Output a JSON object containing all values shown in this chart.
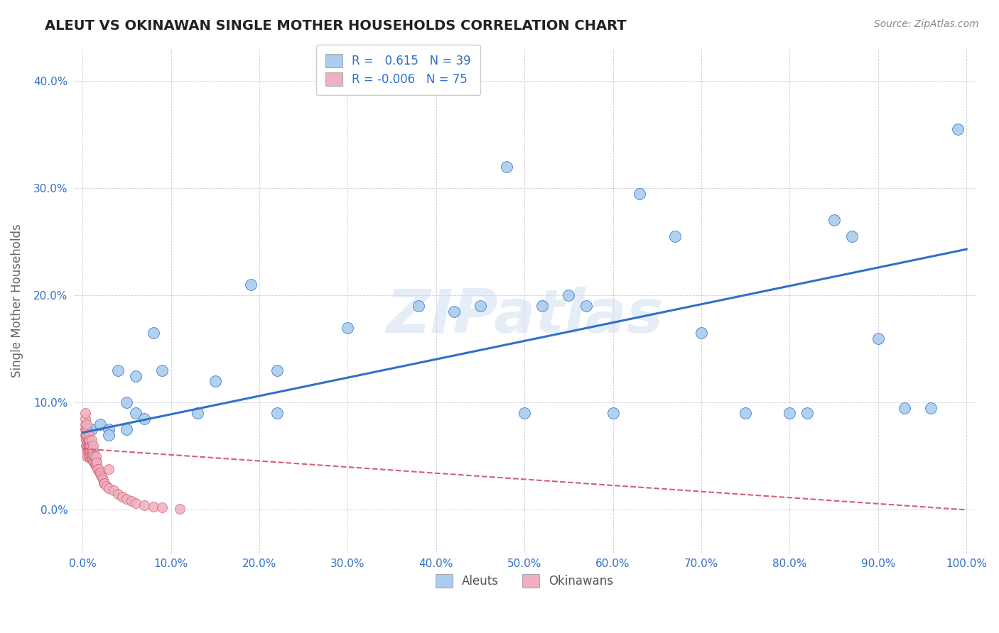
{
  "title": "ALEUT VS OKINAWAN SINGLE MOTHER HOUSEHOLDS CORRELATION CHART",
  "source": "Source: ZipAtlas.com",
  "ylabel": "Single Mother Households",
  "xlabel": "",
  "xlim": [
    -0.01,
    1.01
  ],
  "ylim": [
    -0.04,
    0.43
  ],
  "xticks": [
    0.0,
    0.1,
    0.2,
    0.3,
    0.4,
    0.5,
    0.6,
    0.7,
    0.8,
    0.9,
    1.0
  ],
  "yticks": [
    0.0,
    0.1,
    0.2,
    0.3,
    0.4
  ],
  "aleut_color": "#aaccee",
  "okinawan_color": "#f0b0c0",
  "aleut_line_color": "#3070c8",
  "okinawan_line_color": "#d06070",
  "tick_color": "#3070c8",
  "r_aleut": 0.615,
  "n_aleut": 39,
  "r_okinawan": -0.006,
  "n_okinawan": 75,
  "watermark": "ZIPatlas",
  "aleut_x": [
    0.01,
    0.02,
    0.03,
    0.03,
    0.04,
    0.05,
    0.05,
    0.06,
    0.06,
    0.07,
    0.08,
    0.09,
    0.13,
    0.15,
    0.19,
    0.22,
    0.22,
    0.3,
    0.38,
    0.42,
    0.45,
    0.48,
    0.5,
    0.52,
    0.55,
    0.57,
    0.6,
    0.63,
    0.67,
    0.7,
    0.75,
    0.8,
    0.82,
    0.85,
    0.87,
    0.9,
    0.93,
    0.96,
    0.99
  ],
  "aleut_y": [
    0.075,
    0.08,
    0.075,
    0.07,
    0.13,
    0.1,
    0.075,
    0.125,
    0.09,
    0.085,
    0.165,
    0.13,
    0.09,
    0.12,
    0.21,
    0.13,
    0.09,
    0.17,
    0.19,
    0.185,
    0.19,
    0.32,
    0.09,
    0.19,
    0.2,
    0.19,
    0.09,
    0.295,
    0.255,
    0.165,
    0.09,
    0.09,
    0.09,
    0.27,
    0.255,
    0.16,
    0.095,
    0.095,
    0.355
  ],
  "okinawan_x": [
    0.003,
    0.003,
    0.003,
    0.003,
    0.003,
    0.004,
    0.004,
    0.004,
    0.004,
    0.005,
    0.005,
    0.005,
    0.005,
    0.005,
    0.005,
    0.005,
    0.006,
    0.006,
    0.006,
    0.007,
    0.007,
    0.007,
    0.007,
    0.007,
    0.008,
    0.008,
    0.008,
    0.008,
    0.009,
    0.009,
    0.009,
    0.009,
    0.01,
    0.01,
    0.01,
    0.01,
    0.01,
    0.011,
    0.011,
    0.011,
    0.012,
    0.012,
    0.012,
    0.012,
    0.013,
    0.013,
    0.014,
    0.014,
    0.015,
    0.015,
    0.015,
    0.016,
    0.016,
    0.017,
    0.018,
    0.019,
    0.02,
    0.021,
    0.022,
    0.023,
    0.024,
    0.025,
    0.027,
    0.03,
    0.03,
    0.035,
    0.04,
    0.045,
    0.05,
    0.055,
    0.06,
    0.07,
    0.08,
    0.09,
    0.11
  ],
  "okinawan_y": [
    0.07,
    0.075,
    0.08,
    0.085,
    0.09,
    0.06,
    0.065,
    0.07,
    0.075,
    0.05,
    0.055,
    0.06,
    0.065,
    0.07,
    0.075,
    0.08,
    0.055,
    0.06,
    0.065,
    0.05,
    0.055,
    0.06,
    0.065,
    0.07,
    0.05,
    0.055,
    0.06,
    0.065,
    0.048,
    0.052,
    0.056,
    0.06,
    0.048,
    0.052,
    0.056,
    0.06,
    0.065,
    0.048,
    0.052,
    0.056,
    0.045,
    0.05,
    0.055,
    0.06,
    0.045,
    0.05,
    0.042,
    0.048,
    0.042,
    0.046,
    0.05,
    0.04,
    0.044,
    0.038,
    0.038,
    0.035,
    0.035,
    0.032,
    0.03,
    0.028,
    0.025,
    0.025,
    0.022,
    0.02,
    0.038,
    0.018,
    0.015,
    0.012,
    0.01,
    0.008,
    0.006,
    0.004,
    0.003,
    0.002,
    0.001
  ],
  "aleut_line_x": [
    0.0,
    1.0
  ],
  "aleut_line_y": [
    0.072,
    0.243
  ],
  "okinawan_line_x": [
    0.0,
    1.0
  ],
  "okinawan_line_y": [
    0.057,
    0.0
  ]
}
